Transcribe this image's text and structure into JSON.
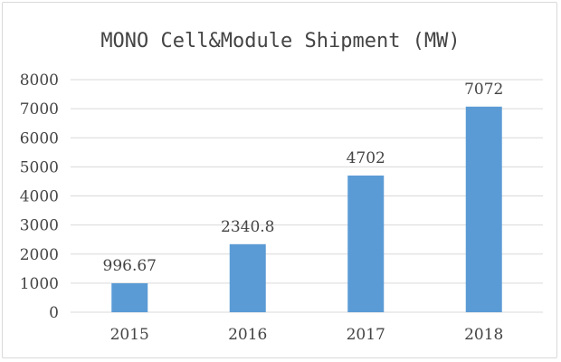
{
  "chart_data": {
    "type": "bar",
    "title": "MONO Cell&Module Shipment (MW)",
    "categories": [
      "2015",
      "2016",
      "2017",
      "2018"
    ],
    "values": [
      996.67,
      2340.8,
      4702,
      7072
    ],
    "value_labels": [
      "996.67",
      "2340.8",
      "4702",
      "7072"
    ],
    "ylim": [
      0,
      8000
    ],
    "yticks": [
      "0",
      "1000",
      "2000",
      "3000",
      "4000",
      "5000",
      "6000",
      "7000",
      "8000"
    ],
    "ytick_values": [
      0,
      1000,
      2000,
      3000,
      4000,
      5000,
      6000,
      7000,
      8000
    ],
    "xlabel": "",
    "ylabel": "",
    "grid": true,
    "legend": "none",
    "colors": {
      "bar": "#5b9bd5",
      "text": "#444444",
      "grid": "#d9d9d9"
    }
  }
}
